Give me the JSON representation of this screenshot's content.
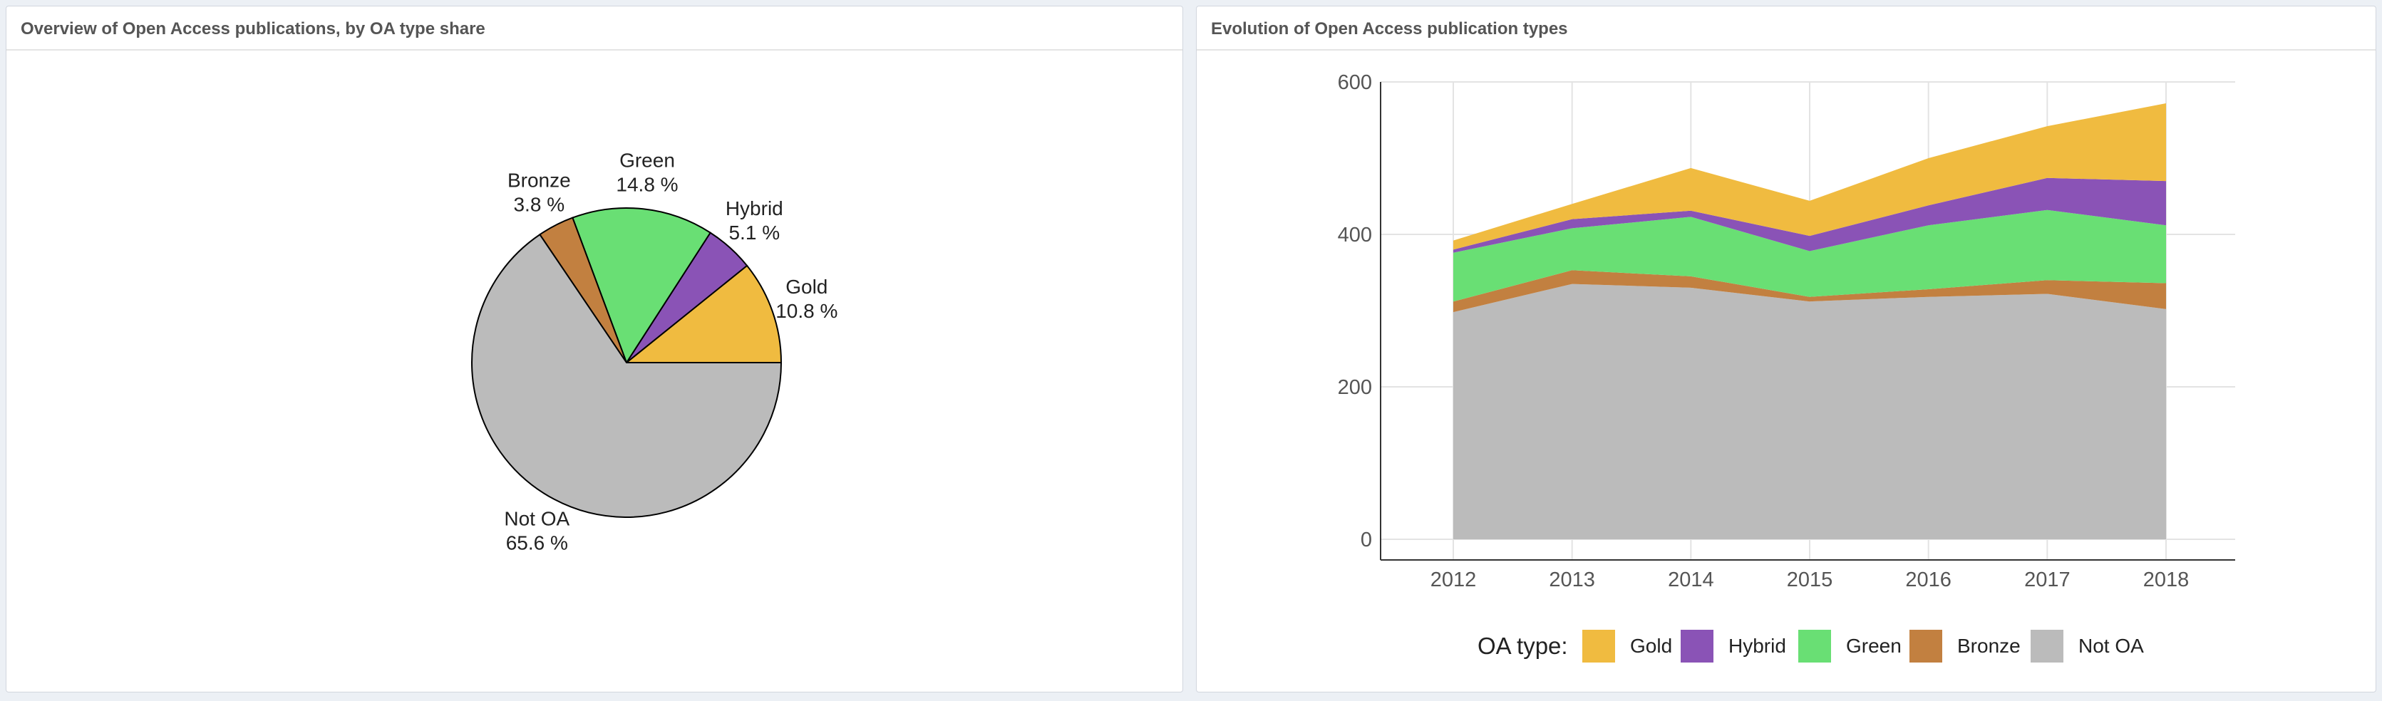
{
  "panels": {
    "left_title": "Overview of Open Access publications, by OA type share",
    "right_title": "Evolution of Open Access publication types"
  },
  "chart_data": [
    {
      "type": "pie",
      "title": "Overview of Open Access publications, by OA type share",
      "slices": [
        {
          "label": "Gold",
          "value": 10.8,
          "display": "10.8  %",
          "color": "#f0bb40"
        },
        {
          "label": "Hybrid",
          "value": 5.1,
          "display": "5.1  %",
          "color": "#8a53b6"
        },
        {
          "label": "Green",
          "value": 14.8,
          "display": "14.8  %",
          "color": "#69df74"
        },
        {
          "label": "Bronze",
          "value": 3.8,
          "display": "3.8  %",
          "color": "#c28040"
        },
        {
          "label": "Not OA",
          "value": 65.6,
          "display": "65.6  %",
          "color": "#bbbbbb"
        }
      ]
    },
    {
      "type": "area",
      "title": "Evolution of Open Access publication types",
      "stacked": true,
      "x": [
        2012,
        2013,
        2014,
        2015,
        2016,
        2017,
        2018
      ],
      "ylim": [
        0,
        600
      ],
      "yticks": [
        0,
        200,
        400,
        600
      ],
      "grid": true,
      "legend_title": "OA type:",
      "legend_position": "bottom",
      "series": [
        {
          "name": "Not OA",
          "color": "#bbbbbb",
          "values": [
            298,
            335,
            330,
            312,
            318,
            322,
            302
          ]
        },
        {
          "name": "Bronze",
          "color": "#c28040",
          "values": [
            14,
            18,
            15,
            6,
            10,
            18,
            34
          ]
        },
        {
          "name": "Green",
          "color": "#69df74",
          "values": [
            64,
            55,
            78,
            60,
            84,
            92,
            76
          ]
        },
        {
          "name": "Hybrid",
          "color": "#8a53b6",
          "values": [
            4,
            12,
            8,
            20,
            26,
            42,
            58
          ]
        },
        {
          "name": "Gold",
          "color": "#f0bb40",
          "values": [
            12,
            20,
            56,
            46,
            62,
            68,
            102
          ]
        }
      ],
      "legend_order": [
        "Gold",
        "Hybrid",
        "Green",
        "Bronze",
        "Not OA"
      ]
    }
  ]
}
